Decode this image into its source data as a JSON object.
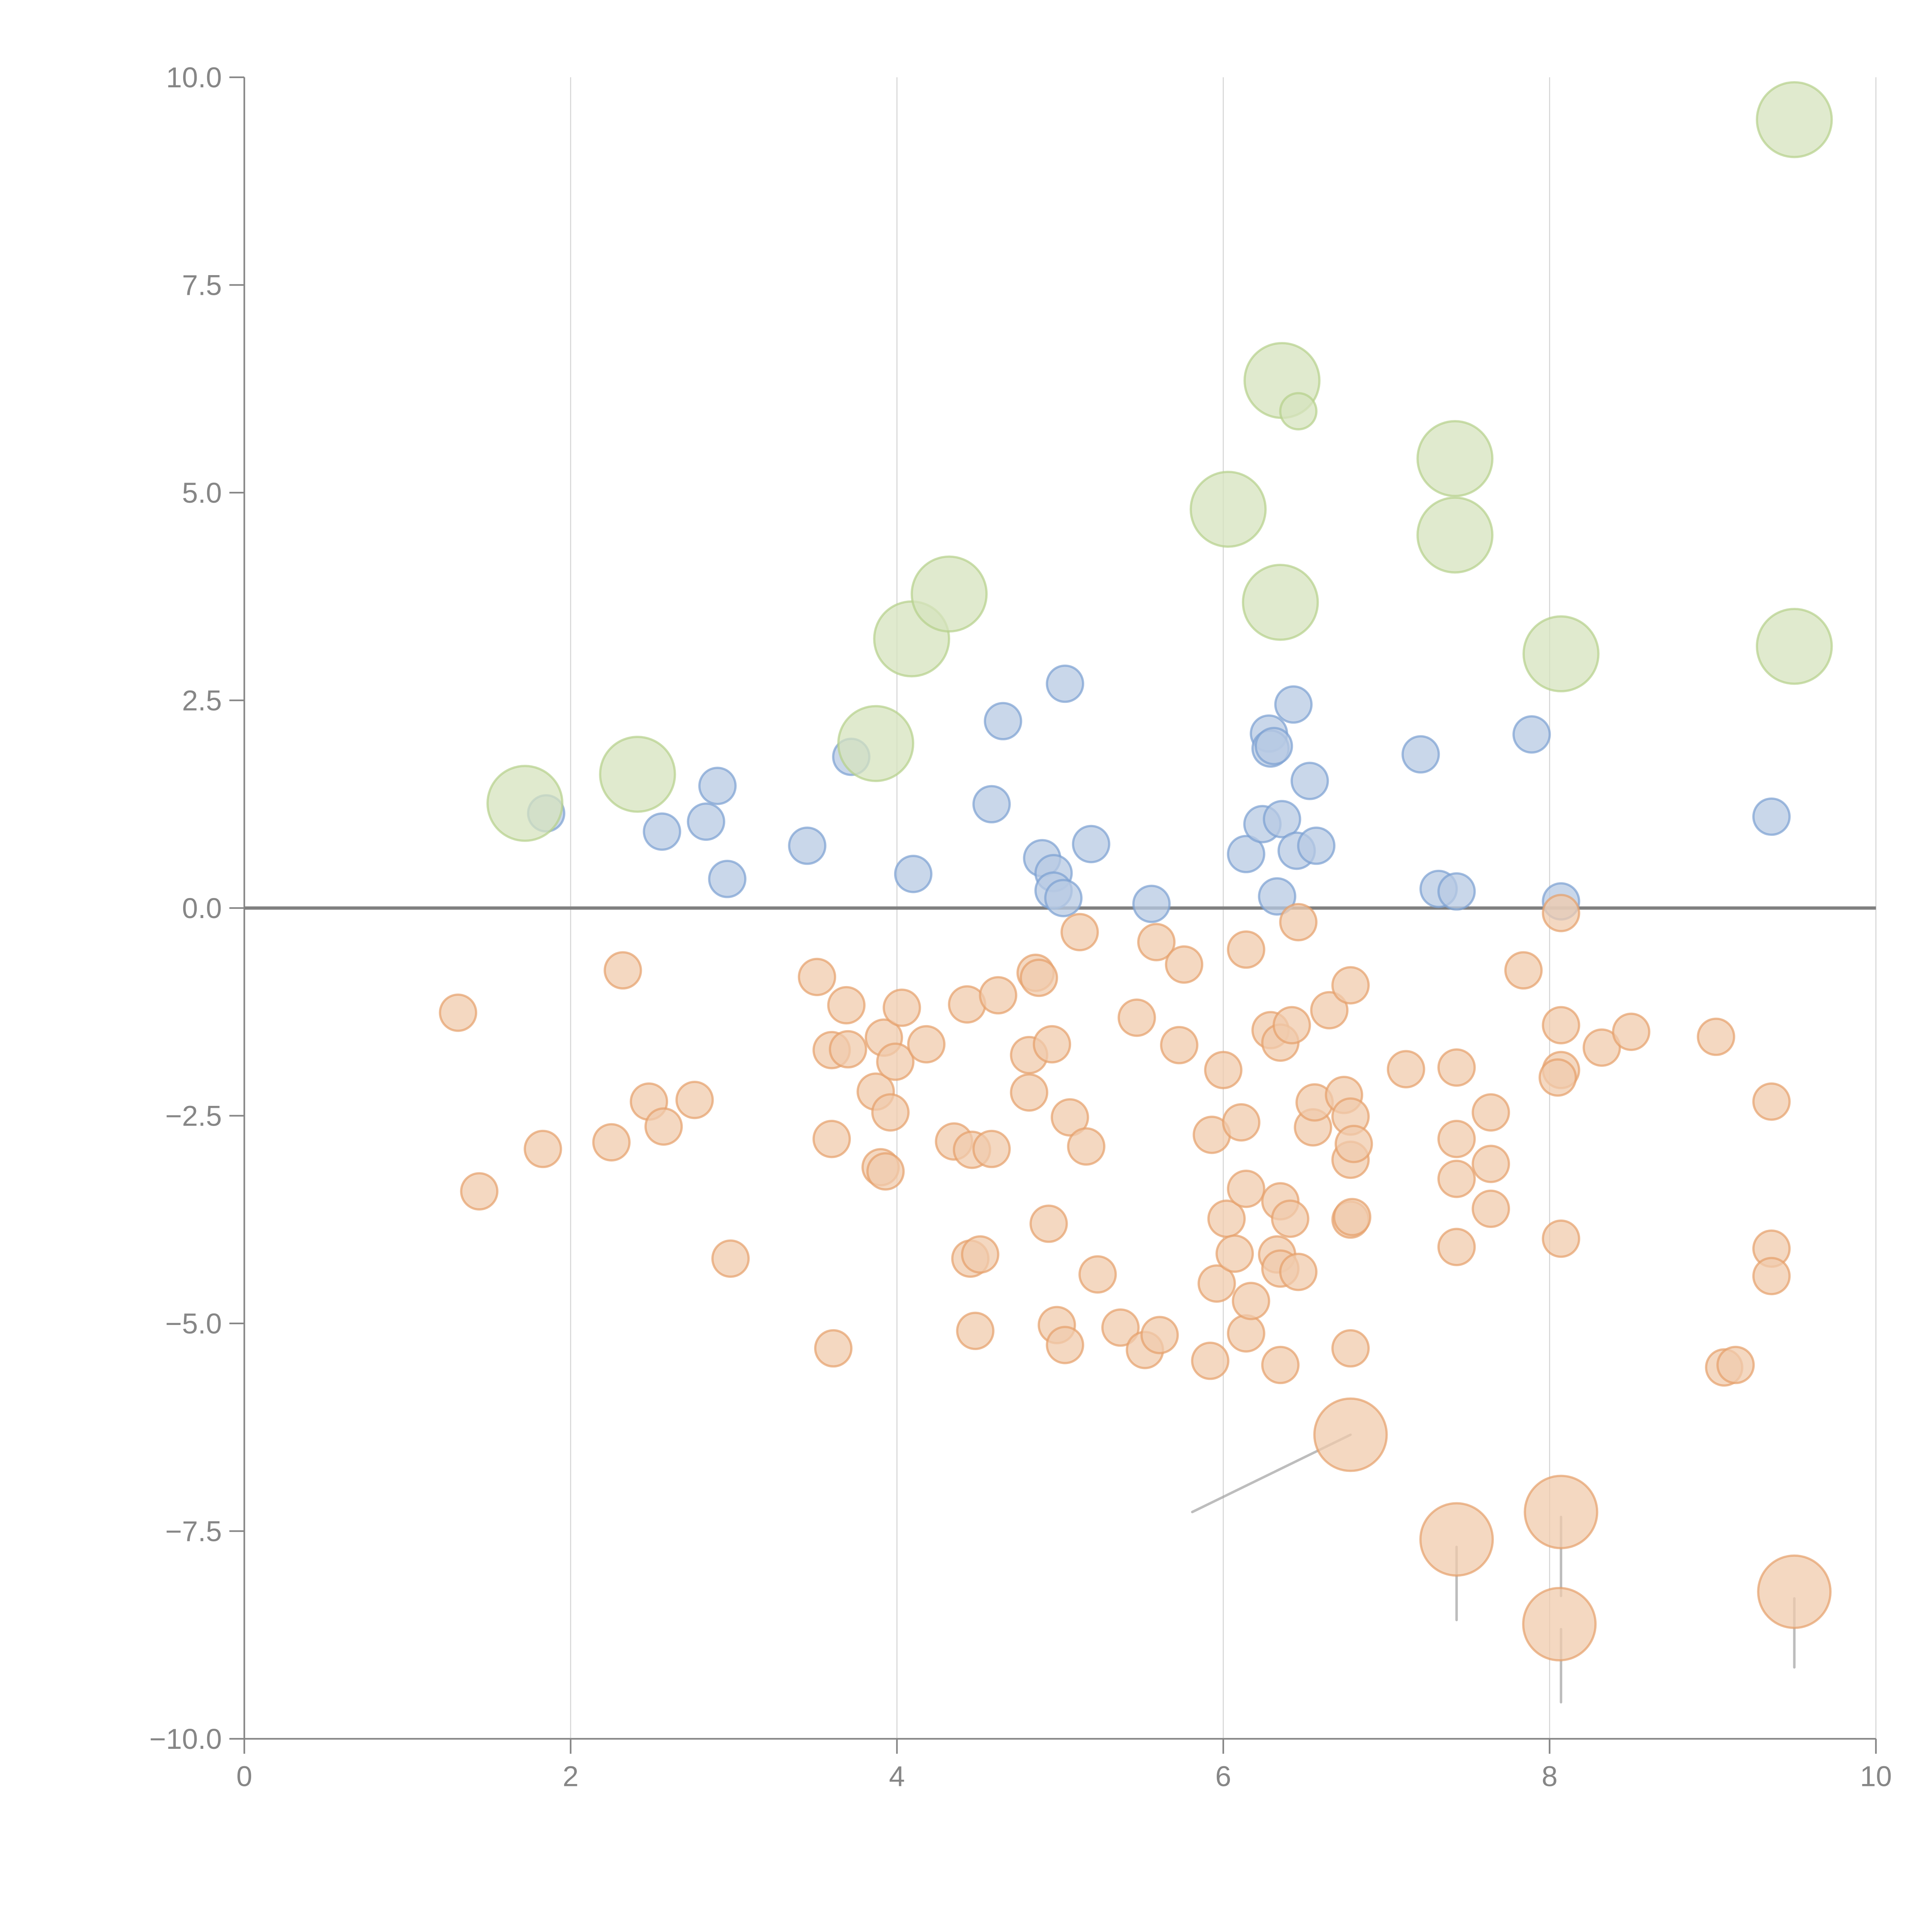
{
  "chart_data": {
    "type": "scatter",
    "subtype": "bubble",
    "title": "",
    "xlabel": "",
    "ylabel": "",
    "xlim": [
      0,
      10
    ],
    "ylim": [
      -10,
      10
    ],
    "x_ticks": [
      "0",
      "2",
      "4",
      "6",
      "8",
      "10"
    ],
    "x_tick_values": [
      0,
      2,
      4,
      6,
      8,
      10
    ],
    "y_ticks": [
      "10.0",
      "7.5",
      "5.0",
      "2.5",
      "0.0",
      "−2.5",
      "−5.0",
      "−7.5",
      "−10.0"
    ],
    "y_tick_values": [
      10,
      7.5,
      5,
      2.5,
      0,
      -2.5,
      -5,
      -7.5,
      -10
    ],
    "grid": "vertical-x-major",
    "reference_line_y": 0,
    "legend": "none",
    "series": [
      {
        "name": "green",
        "color": "#d5e3bd",
        "stroke": "#b5d08a",
        "size": "large",
        "points": [
          [
            1.72,
            1.26
          ],
          [
            2.41,
            1.61
          ],
          [
            3.87,
            1.98
          ],
          [
            4.09,
            3.24
          ],
          [
            4.32,
            3.78
          ],
          [
            6.03,
            4.8
          ],
          [
            6.36,
            6.35
          ],
          [
            6.35,
            3.68
          ],
          [
            7.42,
            5.41
          ],
          [
            7.42,
            4.49
          ],
          [
            8.07,
            3.06
          ],
          [
            9.5,
            9.49
          ],
          [
            9.5,
            3.15
          ]
        ],
        "small_points": [
          [
            6.46,
            5.98
          ]
        ]
      },
      {
        "name": "blue",
        "color": "#b7c9e3",
        "stroke": "#7a9fd1",
        "size": "small",
        "points": [
          [
            1.85,
            1.14
          ],
          [
            2.56,
            0.92
          ],
          [
            2.83,
            1.04
          ],
          [
            2.9,
            1.47
          ],
          [
            2.96,
            0.35
          ],
          [
            3.45,
            0.75
          ],
          [
            3.72,
            1.82
          ],
          [
            4.1,
            0.41
          ],
          [
            4.58,
            1.25
          ],
          [
            4.65,
            2.25
          ],
          [
            4.89,
            0.6
          ],
          [
            4.96,
            0.42
          ],
          [
            4.96,
            0.21
          ],
          [
            5.02,
            0.12
          ],
          [
            5.03,
            2.7
          ],
          [
            5.19,
            0.77
          ],
          [
            5.56,
            0.05
          ],
          [
            6.14,
            0.65
          ],
          [
            6.24,
            1.01
          ],
          [
            6.28,
            2.1
          ],
          [
            6.29,
            1.92
          ],
          [
            6.31,
            1.95
          ],
          [
            6.33,
            0.14
          ],
          [
            6.36,
            1.07
          ],
          [
            6.43,
            2.45
          ],
          [
            6.45,
            0.69
          ],
          [
            6.53,
            1.53
          ],
          [
            6.57,
            0.75
          ],
          [
            7.21,
            1.85
          ],
          [
            7.32,
            0.23
          ],
          [
            7.43,
            0.2
          ],
          [
            7.89,
            2.09
          ],
          [
            8.07,
            0.08
          ],
          [
            9.36,
            1.1
          ]
        ]
      },
      {
        "name": "orange",
        "color": "#f0cbac",
        "stroke": "#e5a06a",
        "size": "small",
        "points": [
          [
            1.31,
            -1.26
          ],
          [
            1.44,
            -3.41
          ],
          [
            1.83,
            -2.9
          ],
          [
            2.25,
            -2.82
          ],
          [
            2.32,
            -0.75
          ],
          [
            2.48,
            -2.33
          ],
          [
            2.57,
            -2.63
          ],
          [
            2.76,
            -2.31
          ],
          [
            2.98,
            -4.22
          ],
          [
            3.51,
            -0.83
          ],
          [
            3.6,
            -1.71
          ],
          [
            3.6,
            -2.78
          ],
          [
            3.61,
            -5.3
          ],
          [
            3.69,
            -1.17
          ],
          [
            3.7,
            -1.7
          ],
          [
            3.87,
            -2.21
          ],
          [
            3.92,
            -1.56
          ],
          [
            3.9,
            -3.12
          ],
          [
            3.93,
            -3.17
          ],
          [
            3.96,
            -2.46
          ],
          [
            3.99,
            -1.85
          ],
          [
            4.03,
            -1.2
          ],
          [
            4.18,
            -1.64
          ],
          [
            4.35,
            -2.81
          ],
          [
            4.43,
            -1.16
          ],
          [
            4.46,
            -2.91
          ],
          [
            4.45,
            -4.22
          ],
          [
            4.48,
            -5.09
          ],
          [
            4.51,
            -4.17
          ],
          [
            4.58,
            -2.9
          ],
          [
            4.62,
            -1.05
          ],
          [
            4.81,
            -2.22
          ],
          [
            4.81,
            -1.77
          ],
          [
            4.85,
            -0.78
          ],
          [
            4.87,
            -0.84
          ],
          [
            4.93,
            -3.8
          ],
          [
            4.95,
            -1.64
          ],
          [
            4.98,
            -5.02
          ],
          [
            5.03,
            -5.26
          ],
          [
            5.06,
            -2.52
          ],
          [
            5.12,
            -0.29
          ],
          [
            5.16,
            -2.87
          ],
          [
            5.23,
            -4.41
          ],
          [
            5.37,
            -5.05
          ],
          [
            5.47,
            -1.32
          ],
          [
            5.52,
            -5.32
          ],
          [
            5.59,
            -0.41
          ],
          [
            5.61,
            -5.14
          ],
          [
            5.73,
            -1.65
          ],
          [
            5.76,
            -0.68
          ],
          [
            5.92,
            -5.45
          ],
          [
            5.93,
            -2.73
          ],
          [
            5.96,
            -4.52
          ],
          [
            6.0,
            -1.95
          ],
          [
            6.02,
            -3.74
          ],
          [
            6.07,
            -4.16
          ],
          [
            6.11,
            -2.58
          ],
          [
            6.14,
            -0.5
          ],
          [
            6.14,
            -5.12
          ],
          [
            6.14,
            -3.38
          ],
          [
            6.17,
            -4.73
          ],
          [
            6.29,
            -1.47
          ],
          [
            6.33,
            -4.17
          ],
          [
            6.35,
            -5.5
          ],
          [
            6.35,
            -1.62
          ],
          [
            6.35,
            -3.53
          ],
          [
            6.35,
            -4.34
          ],
          [
            6.41,
            -3.74
          ],
          [
            6.42,
            -1.41
          ],
          [
            6.46,
            -4.38
          ],
          [
            6.46,
            -0.17
          ],
          [
            6.55,
            -2.64
          ],
          [
            6.56,
            -2.34
          ],
          [
            6.65,
            -1.23
          ],
          [
            6.74,
            -2.25
          ],
          [
            6.78,
            -0.93
          ],
          [
            6.78,
            -2.51
          ],
          [
            6.78,
            -3.75
          ],
          [
            6.78,
            -5.3
          ],
          [
            6.78,
            -3.03
          ],
          [
            6.8,
            -2.84
          ],
          [
            6.79,
            -3.72
          ],
          [
            7.12,
            -1.94
          ],
          [
            7.43,
            -1.92
          ],
          [
            7.43,
            -2.78
          ],
          [
            7.43,
            -3.26
          ],
          [
            7.43,
            -4.08
          ],
          [
            7.64,
            -2.46
          ],
          [
            7.64,
            -3.08
          ],
          [
            7.64,
            -3.62
          ],
          [
            7.84,
            -0.75
          ],
          [
            8.07,
            -0.06
          ],
          [
            8.07,
            -1.41
          ],
          [
            8.07,
            -1.95
          ],
          [
            8.05,
            -2.04
          ],
          [
            8.07,
            -3.98
          ],
          [
            8.32,
            -1.68
          ],
          [
            8.5,
            -1.49
          ],
          [
            9.02,
            -1.55
          ],
          [
            9.07,
            -5.53
          ],
          [
            9.14,
            -5.5
          ],
          [
            9.36,
            -2.33
          ],
          [
            9.36,
            -4.1
          ],
          [
            9.36,
            -4.43
          ]
        ],
        "large_points": [
          [
            6.78,
            -6.34
          ],
          [
            7.43,
            -7.6
          ],
          [
            8.07,
            -7.27
          ],
          [
            8.06,
            -8.62
          ],
          [
            9.5,
            -8.23
          ]
        ]
      }
    ],
    "annotations": {
      "note": "Annotation labels rendered in white (not legible); only leader lines visible",
      "leader_lines": [
        {
          "from": [
            5.81,
            -7.27
          ],
          "to": [
            6.78,
            -6.34
          ]
        },
        {
          "from": [
            7.43,
            -7.69
          ],
          "to": [
            7.43,
            -8.57
          ]
        },
        {
          "from": [
            8.07,
            -7.33
          ],
          "to": [
            8.07,
            -8.28
          ]
        },
        {
          "from": [
            8.07,
            -8.68
          ],
          "to": [
            8.07,
            -9.56
          ]
        },
        {
          "from": [
            9.5,
            -8.31
          ],
          "to": [
            9.5,
            -9.14
          ]
        }
      ]
    }
  }
}
